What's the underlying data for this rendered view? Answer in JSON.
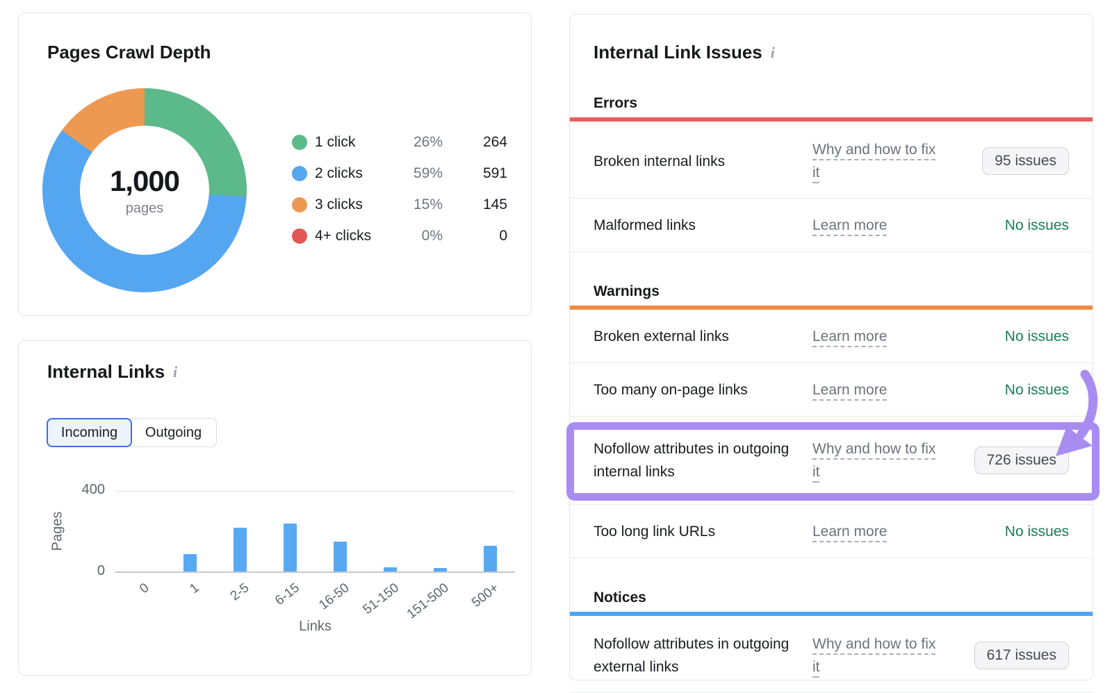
{
  "crawl_depth_card": {
    "title": "Pages Crawl Depth",
    "center_value": "1,000",
    "center_label": "pages",
    "legend": [
      {
        "label": "1 click",
        "pct": "26%",
        "count": "264",
        "color": "#5cb98a"
      },
      {
        "label": "2 clicks",
        "pct": "59%",
        "count": "591",
        "color": "#55a6f1"
      },
      {
        "label": "3 clicks",
        "pct": "15%",
        "count": "145",
        "color": "#ee9952"
      },
      {
        "label": "4+ clicks",
        "pct": "0%",
        "count": "0",
        "color": "#e25656"
      }
    ]
  },
  "internal_links_card": {
    "title": "Internal Links",
    "info_icon": "i",
    "tabs": [
      {
        "label": "Incoming",
        "selected": true
      },
      {
        "label": "Outgoing",
        "selected": false
      }
    ],
    "y_tick_top": "400",
    "y_tick_zero": "0",
    "ylabel": "Pages",
    "xlabel": "Links",
    "bar_color": "#58a9f2"
  },
  "link_issues_card": {
    "title": "Internal Link Issues",
    "info_icon": "i",
    "sections": [
      {
        "name": "Errors",
        "color": "#ef5a5a",
        "rows": [
          {
            "label": "Broken internal links",
            "link": "Why and how to fix it",
            "status": "95 issues",
            "status_type": "button"
          },
          {
            "label": "Malformed links",
            "link": "Learn more",
            "status": "No issues",
            "status_type": "ok"
          }
        ]
      },
      {
        "name": "Warnings",
        "color": "#ef8b45",
        "rows": [
          {
            "label": "Broken external links",
            "link": "Learn more",
            "status": "No issues",
            "status_type": "ok"
          },
          {
            "label": "Too many on-page links",
            "link": "Learn more",
            "status": "No issues",
            "status_type": "ok"
          },
          {
            "label": "Nofollow attributes in outgoing internal links",
            "link": "Why and how to fix it",
            "status": "726 issues",
            "status_type": "button",
            "highlighted": true
          },
          {
            "label": "Too long link URLs",
            "link": "Learn more",
            "status": "No issues",
            "status_type": "ok"
          }
        ]
      },
      {
        "name": "Notices",
        "color": "#4ba5f5",
        "rows": [
          {
            "label": "Nofollow attributes in outgoing external links",
            "link": "Why and how to fix it",
            "status": "617 issues",
            "status_type": "button"
          }
        ]
      }
    ],
    "annotation_color": "#a98cf2"
  },
  "chart_data": [
    {
      "type": "pie",
      "title": "Pages Crawl Depth",
      "donut": true,
      "center_label": "1,000 pages",
      "labels": [
        "1 click",
        "2 clicks",
        "3 clicks",
        "4+ clicks"
      ],
      "values_pct": [
        26,
        59,
        15,
        0
      ],
      "counts": [
        264,
        591,
        145,
        0
      ],
      "colors": [
        "#5cb98a",
        "#55a6f1",
        "#ee9952",
        "#e25656"
      ],
      "legend_position": "right"
    },
    {
      "type": "bar",
      "title": "Internal Links (Incoming)",
      "categories": [
        "0",
        "1",
        "2-5",
        "6-15",
        "16-50",
        "51-150",
        "151-500",
        "500+"
      ],
      "values": [
        0,
        90,
        220,
        240,
        150,
        25,
        20,
        130
      ],
      "xlabel": "Links",
      "ylabel": "Pages",
      "ylim": [
        0,
        400
      ],
      "y_ticks": [
        0,
        400
      ],
      "grid": true,
      "bar_color": "#58a9f2"
    }
  ]
}
